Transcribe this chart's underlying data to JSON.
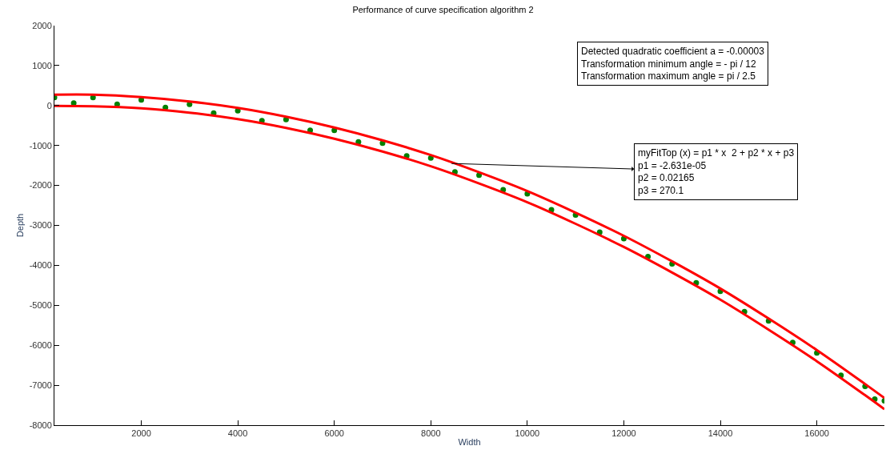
{
  "chart_data": {
    "type": "line",
    "title": "Performance of curve specification algorithm 2",
    "xlabel": "Width",
    "ylabel": "Depth",
    "xlim": [
      200,
      17400
    ],
    "ylim": [
      -8000,
      2000
    ],
    "xticks": [
      2000,
      4000,
      6000,
      8000,
      10000,
      12000,
      14000,
      16000
    ],
    "yticks": [
      -8000,
      -7000,
      -6000,
      -5000,
      -4000,
      -3000,
      -2000,
      -1000,
      0,
      1000,
      2000
    ],
    "annotations": [
      "Detected quadratic coefficient a = -0.00003\nTransformation minimum angle = - pi / 12\nTransformation maximum angle = pi / 2.5",
      {
        "text": "myFitTop (x) = p1 * x  2 + p2 * x + p3\np1 = -2.631e-05\np2 = 0.02165\np3 = 270.1",
        "x": 8430,
        "y": -1450
      }
    ],
    "series": [
      {
        "type": "scatter",
        "color": "#008000",
        "marker": "circle",
        "x": [
          200,
          600,
          1000,
          1500,
          2000,
          2500,
          3000,
          3500,
          4000,
          4500,
          5000,
          5500,
          6000,
          6500,
          7000,
          7500,
          8000,
          8500,
          9000,
          9500,
          10000,
          10500,
          11000,
          11500,
          12000,
          12500,
          13000,
          13500,
          14000,
          14500,
          15000,
          15500,
          16000,
          16500,
          17000,
          17200,
          17400
        ],
        "values": [
          200,
          60,
          200,
          30,
          140,
          -50,
          30,
          -190,
          -130,
          -380,
          -350,
          -620,
          -620,
          -910,
          -940,
          -1260,
          -1310,
          -1660,
          -1740,
          -2110,
          -2210,
          -2610,
          -2740,
          -3170,
          -3330,
          -3780,
          -3960,
          -4440,
          -4650,
          -5160,
          -5390,
          -5930,
          -6190,
          -6750,
          -7030,
          -7350,
          -7390
        ]
      },
      {
        "color": "#ff0000",
        "marker": "none",
        "x": [
          200,
          1000,
          2000,
          3000,
          4000,
          5000,
          6000,
          7000,
          8000,
          9000,
          10000,
          11000,
          12000,
          13000,
          14000,
          15000,
          16000,
          17000,
          17400
        ],
        "values": [
          270,
          270,
          210,
          100,
          -60,
          -280,
          -550,
          -870,
          -1240,
          -1670,
          -2140,
          -2680,
          -3260,
          -3900,
          -4580,
          -5330,
          -6120,
          -6970,
          -7320
        ]
      },
      {
        "color": "#ff0000",
        "marker": "none",
        "x": [
          200,
          1000,
          2000,
          3000,
          4000,
          5000,
          6000,
          7000,
          8000,
          9000,
          10000,
          11000,
          12000,
          13000,
          14000,
          15000,
          16000,
          17000,
          17400
        ],
        "values": [
          -10,
          -20,
          -70,
          -180,
          -340,
          -560,
          -830,
          -1150,
          -1520,
          -1950,
          -2420,
          -2960,
          -3540,
          -4180,
          -4860,
          -5610,
          -6400,
          -7250,
          -7600
        ]
      }
    ]
  }
}
